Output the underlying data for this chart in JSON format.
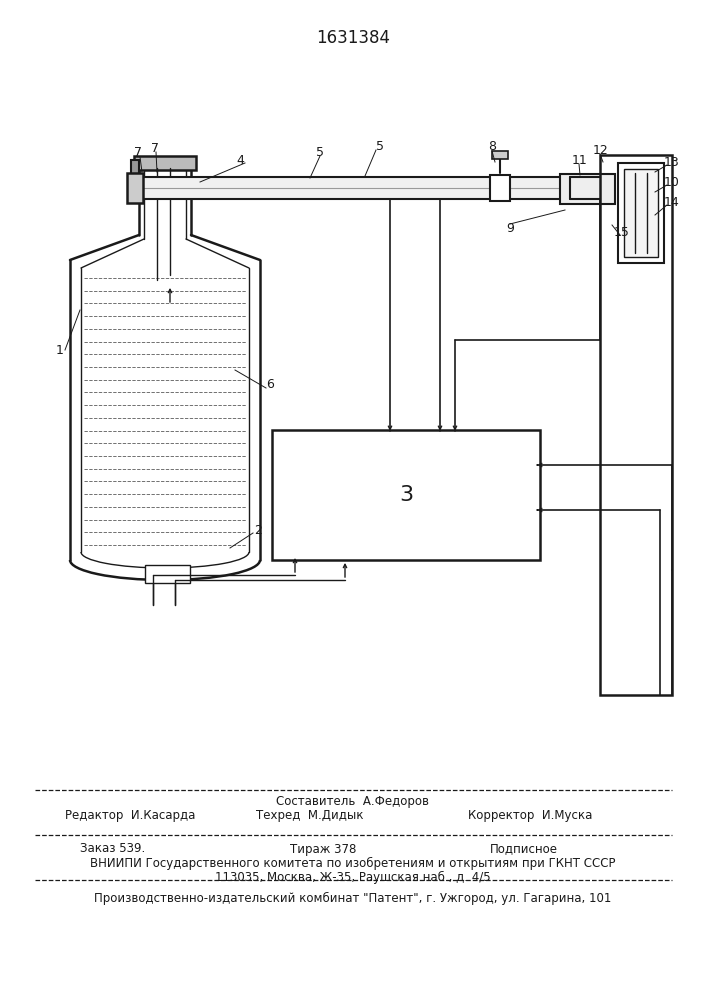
{
  "patent_number": "1631384",
  "bg_color": "#ffffff",
  "lc": "#1a1a1a",
  "footer": {
    "sestavitel": "Составитель  А.Федоров",
    "redaktor": "Редактор  И.Касарда",
    "tehred": "Техред  М.Дидык",
    "korrektor": "Корректор  И.Муска",
    "zakaz": "Заказ 539.",
    "tirazh": "Тираж 378",
    "podpisnoe": "Подписное",
    "vniip1": "ВНИИПИ Государственного комитета по изобретениям и открытиям при ГКНТ СССР",
    "vniip2": "113035, Москва, Ж-35, Раушская наб., д. 4/5",
    "kombinat": "Производственно-издательский комбинат \"Патент\", г. Ужгород, ул. Гагарина, 101"
  }
}
